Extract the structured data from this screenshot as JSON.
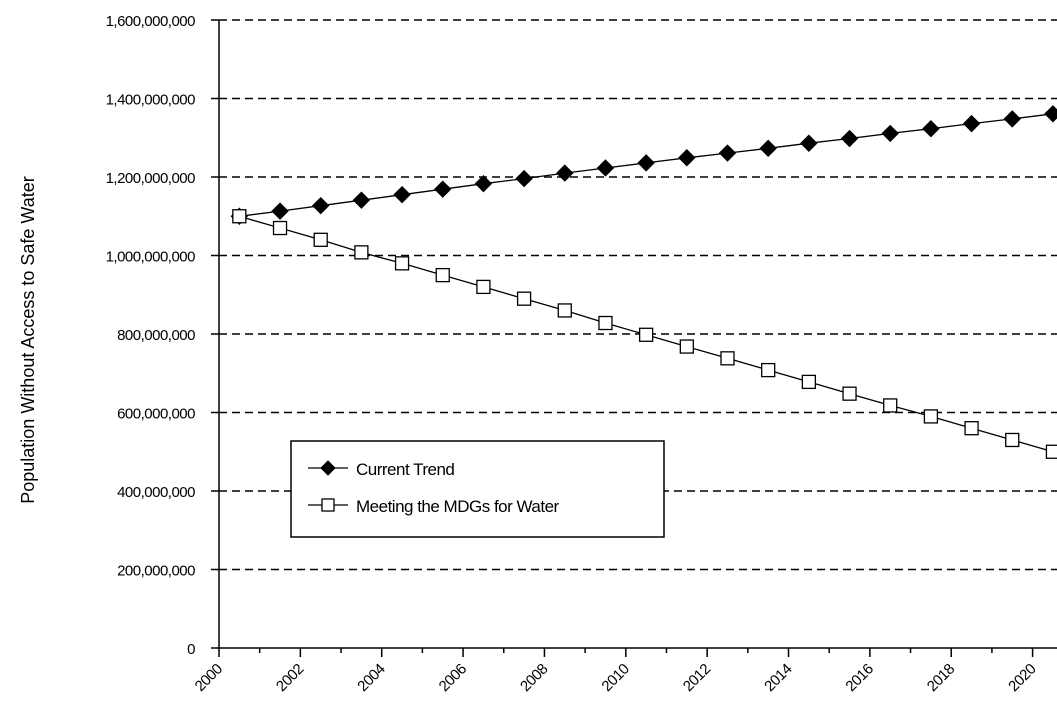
{
  "chart_data": {
    "type": "line",
    "title": "",
    "xlabel": "",
    "ylabel": "Population Without Access to Safe Water",
    "xlim": [
      2000,
      2020.6
    ],
    "ylim": [
      0,
      1600000000
    ],
    "x_ticks": [
      2000,
      2002,
      2004,
      2006,
      2008,
      2010,
      2012,
      2014,
      2016,
      2018,
      2020
    ],
    "x_tick_labels": [
      "2000",
      "2002",
      "2004",
      "2006",
      "2008",
      "2010",
      "2012",
      "2014",
      "2016",
      "2018",
      "2020"
    ],
    "y_ticks": [
      0,
      200000000,
      400000000,
      600000000,
      800000000,
      1000000000,
      1200000000,
      1400000000,
      1600000000
    ],
    "y_tick_labels": [
      "0",
      "200,000,000",
      "400,000,000",
      "600,000,000",
      "800,000,000",
      "1,000,000,000",
      "1,200,000,000",
      "1,400,000,000",
      "1,600,000,000"
    ],
    "grid": "horizontal dashed",
    "legend_position": "lower-left",
    "x": [
      2000.5,
      2001.5,
      2002.5,
      2003.5,
      2004.5,
      2005.5,
      2006.5,
      2007.5,
      2008.5,
      2009.5,
      2010.5,
      2011.5,
      2012.5,
      2013.5,
      2014.5,
      2015.5,
      2016.5,
      2017.5,
      2018.5,
      2019.5,
      2020.5
    ],
    "series": [
      {
        "name": "Current Trend",
        "marker": "filled-diamond",
        "color": "#000000",
        "values": [
          1100000000,
          1113000000,
          1127000000,
          1141000000,
          1155000000,
          1169000000,
          1183000000,
          1196000000,
          1210000000,
          1223000000,
          1236000000,
          1249000000,
          1261000000,
          1273000000,
          1286000000,
          1298000000,
          1311000000,
          1323000000,
          1336000000,
          1348000000,
          1361000000
        ]
      },
      {
        "name": "Meeting the MDGs for Water",
        "marker": "open-square",
        "color": "#000000",
        "values": [
          1100000000,
          1070000000,
          1040000000,
          1008000000,
          980000000,
          950000000,
          920000000,
          890000000,
          860000000,
          828000000,
          798000000,
          768000000,
          738000000,
          708000000,
          678000000,
          648000000,
          618000000,
          590000000,
          560000000,
          530000000,
          500000000
        ]
      }
    ]
  }
}
